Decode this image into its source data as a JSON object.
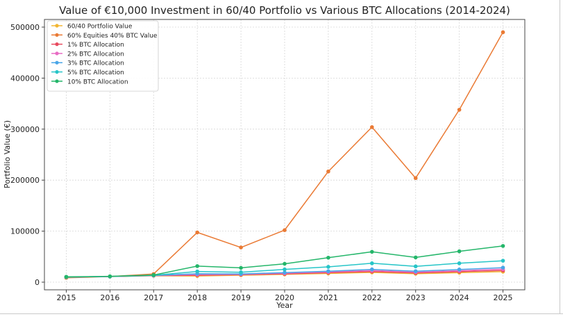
{
  "chart_data": {
    "type": "line",
    "title": "Value of €10,000 Investment in 60/40 Portfolio vs Various BTC Allocations (2014-2024)",
    "xlabel": "Year",
    "ylabel": "Portfolio Value (€)",
    "x": [
      2015,
      2016,
      2017,
      2018,
      2019,
      2020,
      2021,
      2022,
      2023,
      2024,
      2025
    ],
    "x_ticks": [
      "2015",
      "2016",
      "2017",
      "2018",
      "2019",
      "2020",
      "2021",
      "2022",
      "2023",
      "2024",
      "2025"
    ],
    "y_ticks": [
      "0",
      "100000",
      "200000",
      "300000",
      "400000",
      "500000"
    ],
    "y_tick_values": [
      0,
      100000,
      200000,
      300000,
      400000,
      500000
    ],
    "xlim": [
      2014.5,
      2025.5
    ],
    "ylim": [
      -15000,
      515000
    ],
    "grid": true,
    "legend_position": "upper-left",
    "series": [
      {
        "name": "60/40 Portfolio Value",
        "color": "#f2b632",
        "values": [
          10000,
          10900,
          12500,
          12100,
          13600,
          15200,
          17000,
          19000,
          16500,
          18500,
          20500
        ]
      },
      {
        "name": "60% Equities 40% BTC Value",
        "color": "#ea7a34",
        "values": [
          8500,
          11000,
          16000,
          97500,
          68000,
          102000,
          217000,
          304000,
          204000,
          338000,
          490000
        ]
      },
      {
        "name": "1% BTC Allocation",
        "color": "#e84a5f",
        "values": [
          10000,
          11000,
          12800,
          13500,
          14600,
          16200,
          18500,
          20800,
          18000,
          20500,
          23000
        ]
      },
      {
        "name": "2% BTC Allocation",
        "color": "#e86cc4",
        "values": [
          10000,
          11000,
          13000,
          15000,
          15400,
          17500,
          20000,
          22800,
          19800,
          22500,
          25500
        ]
      },
      {
        "name": "3% BTC Allocation",
        "color": "#49a6e8",
        "values": [
          10000,
          11000,
          13200,
          16500,
          16200,
          18800,
          21500,
          25000,
          21500,
          24800,
          28500
        ]
      },
      {
        "name": "5% BTC Allocation",
        "color": "#27c5c8",
        "values": [
          10000,
          11100,
          13500,
          21000,
          19500,
          25000,
          30000,
          37000,
          31000,
          37000,
          42000
        ]
      },
      {
        "name": "10% BTC Allocation",
        "color": "#24b66a",
        "values": [
          10500,
          11500,
          14000,
          31500,
          28000,
          36000,
          48000,
          59500,
          48500,
          60500,
          71000
        ]
      }
    ]
  }
}
